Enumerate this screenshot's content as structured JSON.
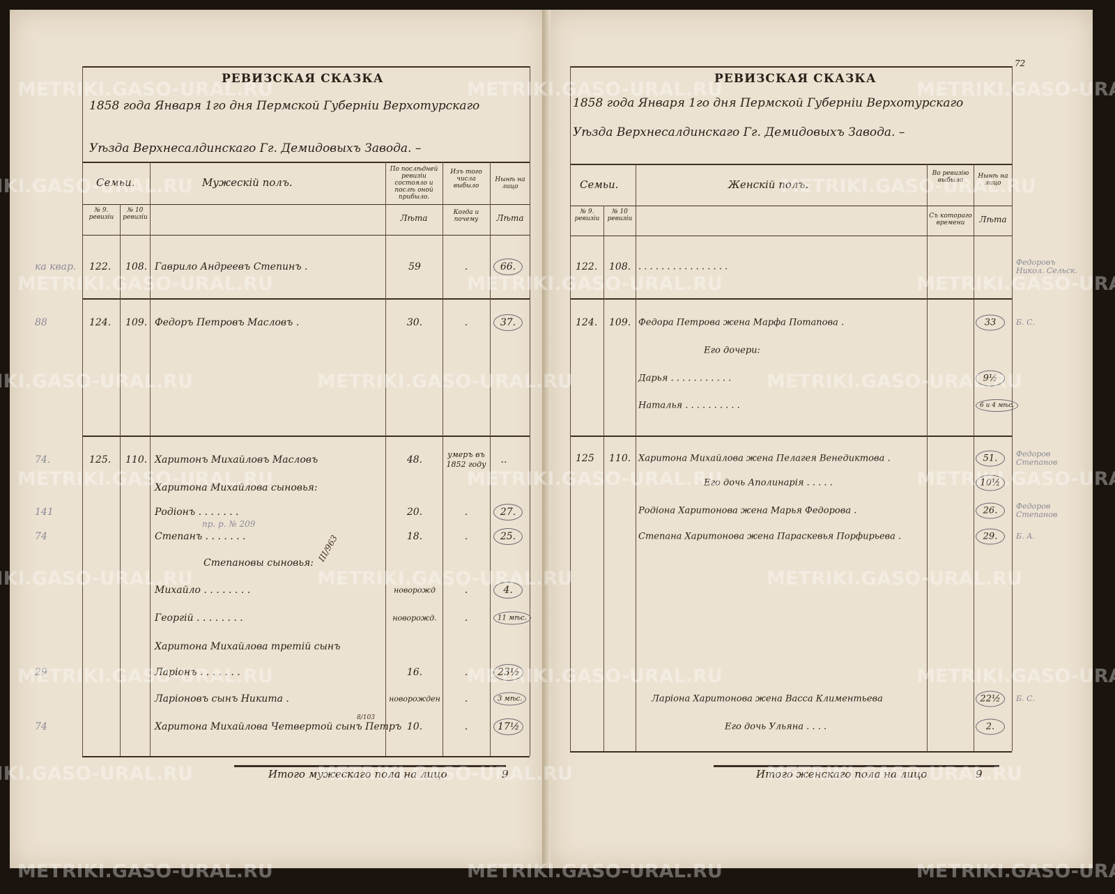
{
  "watermark": "METRIKI.GASO-URAL.RU",
  "page_number": "72",
  "left": {
    "title": "РЕВИЗСКАЯ СКАЗКА",
    "heading_line1": "1858 года Января 1го дня Пермской Губерніи Верхотурскаго",
    "heading_line2": "Уѣзда Верхнесалдинскаго Гг. Демидовыхъ Завода. –",
    "col_family": "Семьи.",
    "col_sex": "Мужескій полъ.",
    "col_last_rev": "По послѣдней ревизіи состояло и послѣ оной прибыло.",
    "col_left": "Изъ того числа выбыло",
    "col_present": "Нынѣ на лицо",
    "sub_rev9": "№ 9. ревизіи",
    "sub_rev10": "№ 10 ревизіи",
    "sub_years": "Лѣта",
    "sub_when": "Когда и почему",
    "sub_years2": "Лѣта",
    "rows": [
      {
        "r9": "122.",
        "r10": "108.",
        "name": "Гаврило Андреевъ Степинъ .",
        "age": "59",
        "left": ".",
        "now": "66.",
        "note": "ка квар."
      },
      {
        "r9": "124.",
        "r10": "109.",
        "name": "Федоръ Петровъ Масловъ .",
        "age": "30.",
        "left": ".",
        "now": "37.",
        "note": "88"
      },
      {
        "r9": "125.",
        "r10": "110.",
        "name": "Харитонъ Михайловъ Масловъ",
        "age": "48.",
        "left": "умеръ въ 1852 году",
        "now": "..",
        "note": "74."
      },
      {
        "name": "Харитона Михайлова сыновья:"
      },
      {
        "name": "Родіонъ . . . . . . .",
        "age": "20.",
        "left": ".",
        "now": "27.",
        "note": "141"
      },
      {
        "name": "Степанъ . . . . . . .",
        "age": "18.",
        "left": ".",
        "now": "25.",
        "note": "74"
      },
      {
        "name": "Степановы сыновья:",
        "center": true
      },
      {
        "name": "Михайло . . . . . . . .",
        "age": "новорожд",
        "left": ".",
        "now": "4."
      },
      {
        "name": "Георгій . . . . . . . .",
        "age": "новорожд.",
        "left": ".",
        "now": "11 мѣс."
      },
      {
        "name": "Харитона Михайлова третій сынъ"
      },
      {
        "name": "Ларіонъ . . . . . . .",
        "age": "16.",
        "left": ".",
        "now": "23½",
        "note": "29"
      },
      {
        "name": "Ларіоновъ сынъ Никита .",
        "age": "новорожден",
        "left": ".",
        "now": "3 мѣс."
      },
      {
        "name": "Харитона Михайлова Четвертой сынъ Петръ",
        "age": "10.",
        "left": ".",
        "now": "17½",
        "note": "74"
      }
    ],
    "annotation1": "пр. р. № 209",
    "annotation2": "III/963",
    "annotation3": "8/103",
    "total_label": "Итого мужескаго пола на лицо",
    "total_value": "9"
  },
  "right": {
    "title": "РЕВИЗСКАЯ СКАЗКА",
    "heading_line1": "1858 года Января 1го дня Пермской Губерніи Верхотурскаго",
    "heading_line2": "Уѣзда Верхнесалдинскаго Гг. Демидовыхъ Завода. –",
    "col_family": "Семьи.",
    "col_sex": "Женскій полъ.",
    "col_rev": "Во ревизію выбыло",
    "col_present": "Нынѣ на лицо",
    "sub_rev9": "№ 9. ревизіи",
    "sub_rev10": "№ 10 ревизіи",
    "sub_since": "Съ котораго времени",
    "sub_years": "Лѣта",
    "rows": [
      {
        "r9": "122.",
        "r10": "108.",
        "name": ". . . . . . . . . . . . . . . .",
        "now": "",
        "note": "Федоровъ Никол. Сельск."
      },
      {
        "r9": "124.",
        "r10": "109.",
        "name": "Федора Петрова жена Марфа Потапова .",
        "now": "33",
        "note": "Б. С."
      },
      {
        "name": "Его дочери:",
        "center": true
      },
      {
        "name": "Дарья . . . . . . . . . . .",
        "now": "9½"
      },
      {
        "name": "Наталья . . . . . . . . . .",
        "now": "6 и 4 мѣс."
      },
      {
        "r9": "125",
        "r10": "110.",
        "name": "Харитона Михайлова жена Пелагея Венедиктова .",
        "now": "51.",
        "note": "Федоров Степанов"
      },
      {
        "name": "Его дочь Аполинарія . . . . .",
        "now": "10½",
        "center": true
      },
      {
        "name": "Родіона Харитонова жена Марья Федорова .",
        "now": "26.",
        "note": "Федоров Степанов"
      },
      {
        "name": "Степана Харитонова жена Параскевья Порфирьева .",
        "now": "29.",
        "note": "Б. А."
      },
      {
        "name": "Ларіона Харитонова жена Васса Климентьева",
        "now": "22½",
        "center": true,
        "note": "Б. С."
      },
      {
        "name": "Его дочь Ульяна . . . .",
        "now": "2.",
        "center": true
      }
    ],
    "total_label": "Итого женскаго пола на лицо",
    "total_value": "9"
  }
}
